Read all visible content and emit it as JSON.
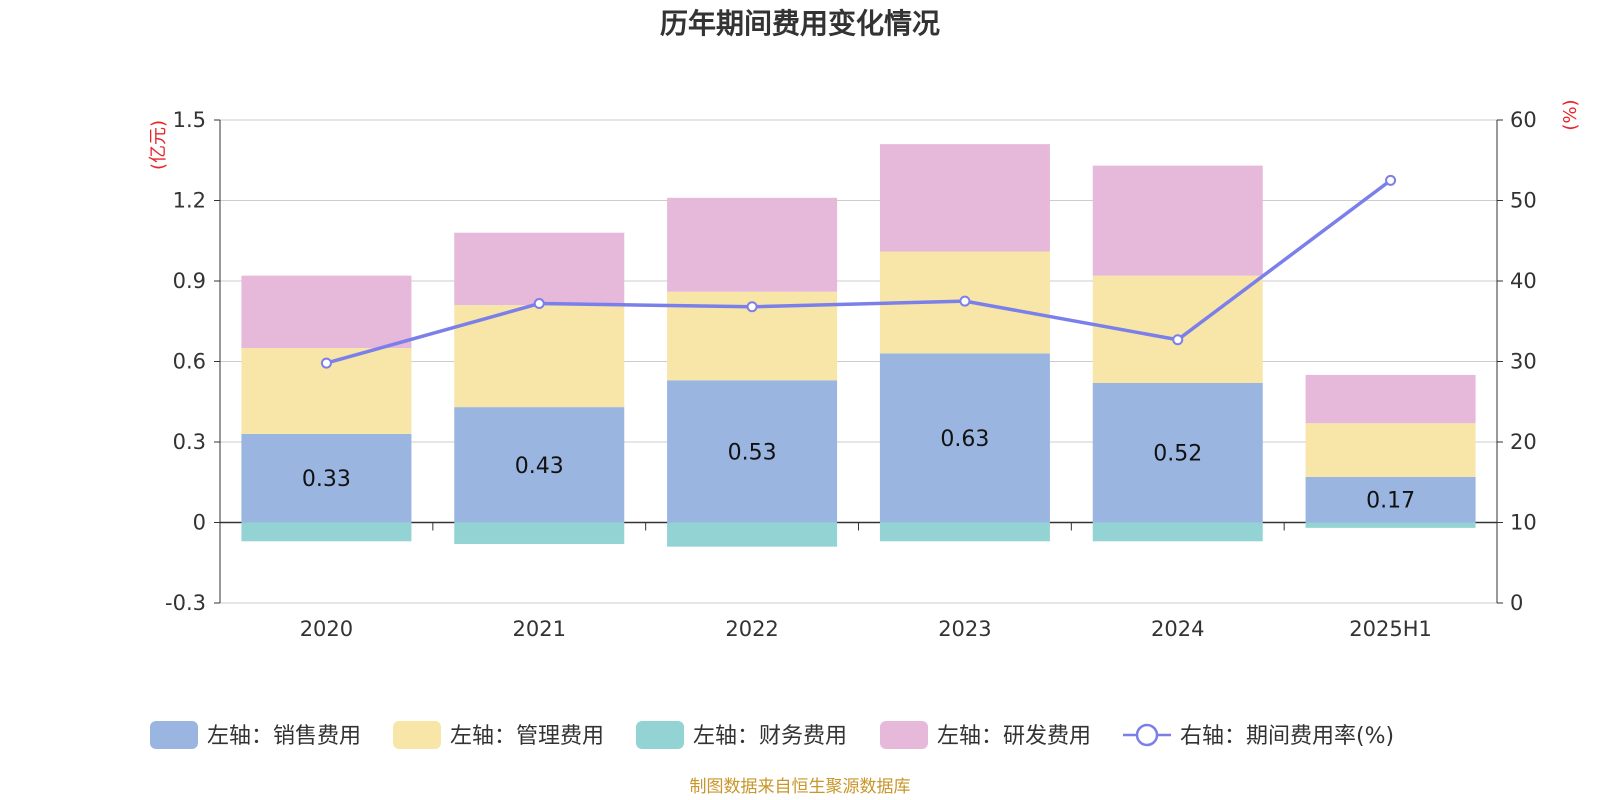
{
  "chart_data": {
    "type": "bar",
    "title": "历年期间费用变化情况",
    "categories": [
      "2020",
      "2021",
      "2022",
      "2023",
      "2024",
      "2025H1"
    ],
    "y_left": {
      "unit_label": "(亿元)",
      "ylim": [
        -0.3,
        1.5
      ],
      "ticks": [
        "1.5",
        "1.2",
        "0.9",
        "0.6",
        "0.3",
        "0",
        "-0.3"
      ],
      "tick_values": [
        1.5,
        1.2,
        0.9,
        0.6,
        0.3,
        0,
        -0.3
      ]
    },
    "y_right": {
      "unit_label": "(%)",
      "ylim": [
        0,
        60
      ],
      "ticks": [
        "60",
        "50",
        "40",
        "30",
        "20",
        "10",
        "0"
      ],
      "tick_values": [
        60,
        50,
        40,
        30,
        20,
        10,
        0
      ]
    },
    "grid": true,
    "stacked": true,
    "series": [
      {
        "name": "左轴：销售费用",
        "axis": "left",
        "kind": "bar",
        "color": "#9ab5e0",
        "values": [
          0.33,
          0.43,
          0.53,
          0.63,
          0.52,
          0.17
        ],
        "data_labels": [
          "0.33",
          "0.43",
          "0.53",
          "0.63",
          "0.52",
          "0.17"
        ]
      },
      {
        "name": "左轴：管理费用",
        "axis": "left",
        "kind": "bar",
        "color": "#f7e6a8",
        "values": [
          0.32,
          0.38,
          0.33,
          0.38,
          0.4,
          0.2
        ]
      },
      {
        "name": "左轴：财务费用",
        "axis": "left",
        "kind": "bar",
        "color": "#93d3d3",
        "values": [
          -0.07,
          -0.08,
          -0.09,
          -0.07,
          -0.07,
          -0.02
        ]
      },
      {
        "name": "左轴：研发费用",
        "axis": "left",
        "kind": "bar",
        "color": "#e6b8d9",
        "values": [
          0.27,
          0.27,
          0.35,
          0.4,
          0.41,
          0.18
        ]
      },
      {
        "name": "右轴：期间费用率(%)",
        "axis": "right",
        "kind": "line",
        "color": "#7b7fea",
        "values": [
          29.8,
          37.2,
          36.8,
          37.5,
          32.7,
          52.5
        ]
      }
    ],
    "legend_position": "bottom",
    "source_note": "制图数据来自恒生聚源数据库"
  }
}
